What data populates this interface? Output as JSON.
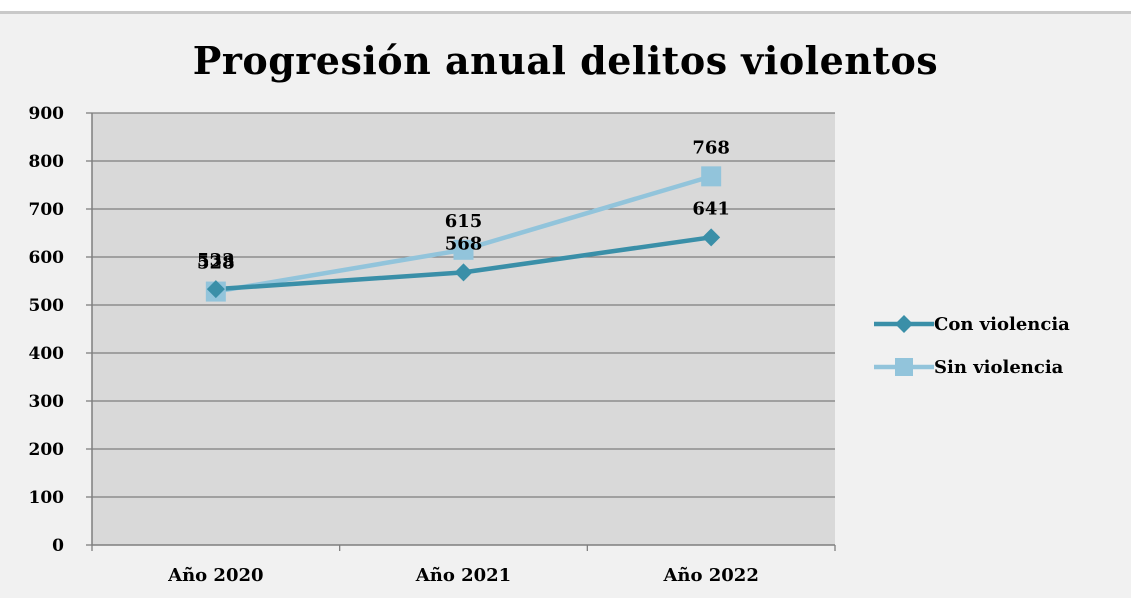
{
  "chart_data": {
    "type": "line",
    "title": "Progresión anual delitos violentos",
    "categories": [
      "Año 2020",
      "Año 2021",
      "Año 2022"
    ],
    "ylim": [
      0,
      900
    ],
    "yticks": [
      0,
      100,
      200,
      300,
      400,
      500,
      600,
      700,
      800,
      900
    ],
    "grid": true,
    "legend_position": "right",
    "series": [
      {
        "name": "Con violencia",
        "values": [
          533,
          568,
          641
        ],
        "color": "#3a8fa8",
        "marker": "diamond"
      },
      {
        "name": "Sin violencia",
        "values": [
          528,
          615,
          768
        ],
        "color": "#92c4db",
        "marker": "square"
      }
    ]
  }
}
